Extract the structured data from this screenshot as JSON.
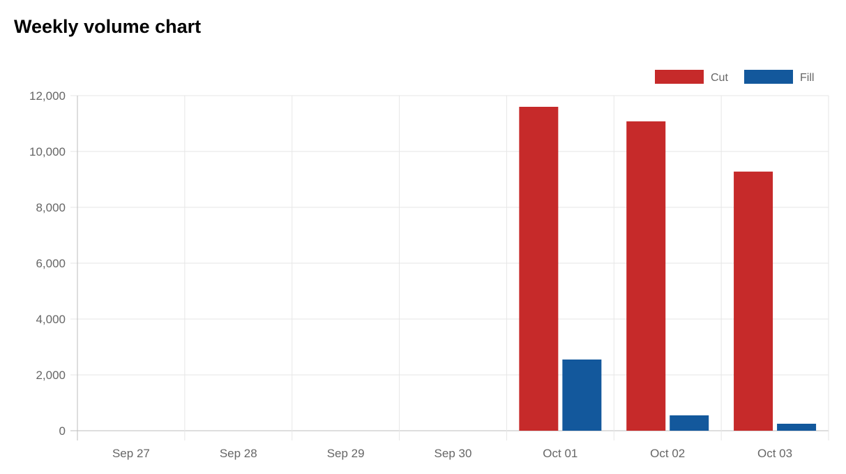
{
  "chart_data": {
    "type": "bar",
    "title": "Weekly volume chart",
    "categories": [
      "Sep 27",
      "Sep 28",
      "Sep 29",
      "Sep 30",
      "Oct 01",
      "Oct 02",
      "Oct 03"
    ],
    "series": [
      {
        "name": "Cut",
        "color": "#c62a2a",
        "values": [
          0,
          0,
          0,
          0,
          11600,
          11080,
          9280
        ]
      },
      {
        "name": "Fill",
        "color": "#13589c",
        "values": [
          0,
          0,
          0,
          0,
          2550,
          550,
          250
        ]
      }
    ],
    "y_ticks": [
      "0",
      "2,000",
      "4,000",
      "6,000",
      "8,000",
      "10,000",
      "12,000"
    ],
    "ylim": [
      0,
      12000
    ],
    "xlabel": "",
    "ylabel": "",
    "grid": true,
    "legend_position": "top-right"
  }
}
